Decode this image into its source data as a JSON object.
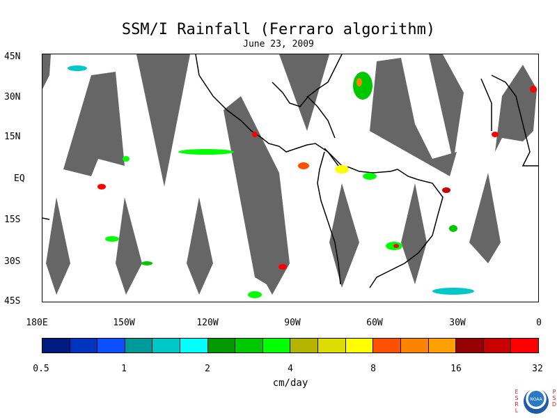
{
  "title": "SSM/I Rainfall (Ferraro algorithm)",
  "subtitle": "June 23, 2009",
  "map": {
    "lat_labels": [
      "45N",
      "30N",
      "15N",
      "EQ",
      "15S",
      "30S",
      "45S"
    ],
    "lon_labels": [
      "180E",
      "150W",
      "120W",
      "90W",
      "60W",
      "30W",
      "0"
    ],
    "lat_range": [
      -45,
      45
    ],
    "lon_range": [
      -180,
      0
    ],
    "swath_gap_color": "#666666",
    "coastline_color": "#000000"
  },
  "colorbar": {
    "unit": "cm/day",
    "labels": [
      "0.5",
      "1",
      "2",
      "4",
      "8",
      "16",
      "32"
    ],
    "colors": [
      "#001a80",
      "#0033c0",
      "#0a50ff",
      "#009999",
      "#00c8c8",
      "#00ffff",
      "#009900",
      "#00c800",
      "#00ff00",
      "#b4b400",
      "#dcdc00",
      "#ffff00",
      "#ff5000",
      "#ff8200",
      "#ffa000",
      "#960000",
      "#c80000",
      "#ff0000"
    ]
  },
  "logo": {
    "left_letters": [
      "E",
      "S",
      "R",
      "L"
    ],
    "right_letters": [
      "P",
      "S",
      "D"
    ],
    "emblem_text": "NOAA"
  }
}
